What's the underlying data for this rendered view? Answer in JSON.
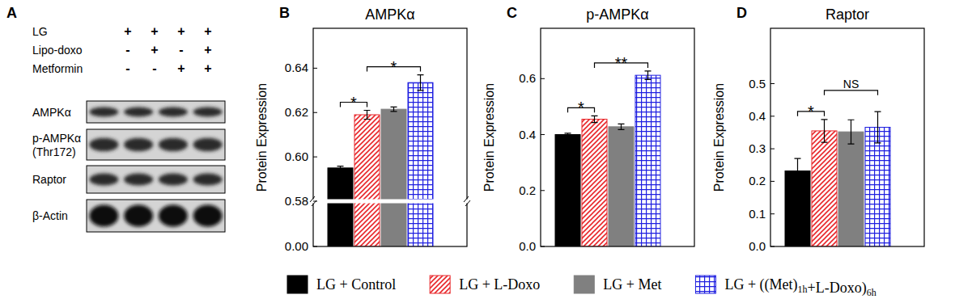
{
  "blot": {
    "label": "A",
    "conditions": [
      {
        "name": "LG",
        "signs": [
          "+",
          "+",
          "+",
          "+"
        ]
      },
      {
        "name": "Lipo-doxo",
        "signs": [
          "-",
          "+",
          "-",
          "+"
        ]
      },
      {
        "name": "Metformin",
        "signs": [
          "-",
          "-",
          "+",
          "+"
        ]
      }
    ],
    "proteins": [
      [
        "AMPKα"
      ],
      [
        "p-AMPKα",
        "(Thr172)"
      ],
      [
        "Raptor"
      ],
      [
        "β-Actin"
      ]
    ]
  },
  "chart_data": [
    {
      "type": "bar",
      "panel": "B",
      "title": "AMPKα",
      "y_label": "Protein Expression",
      "categories": [
        "LG + Control",
        "LG + L-Doxo",
        "LG + Met",
        "LG + ((Met)1h+L-Doxo)6h"
      ],
      "values": [
        0.595,
        0.619,
        0.6215,
        0.6335
      ],
      "errors": [
        0.0008,
        0.002,
        0.001,
        0.0035
      ],
      "colors": [
        "#000000",
        "#e8262a",
        "#808080",
        "#1f1fe0"
      ],
      "ylim": [
        0,
        0.658
      ],
      "y_break": 0.58,
      "yticks": [
        {
          "value": 0,
          "label": "0.00"
        },
        0.58,
        {
          "value": 0.6,
          "label": "0.60"
        },
        0.62,
        0.64
      ],
      "tick_labels": "y",
      "legend": "bottom",
      "annotations": [
        {
          "text": "*",
          "between": [
            0,
            1
          ]
        },
        {
          "text": "*",
          "between": [
            1,
            3
          ]
        }
      ]
    },
    {
      "type": "bar",
      "panel": "C",
      "title": "p-AMPKα",
      "y_label": "Protein Expression",
      "categories": [
        "LG + Control",
        "LG + L-Doxo",
        "LG + Met",
        "LG + ((Met)1h+L-Doxo)6h"
      ],
      "values": [
        0.4,
        0.455,
        0.428,
        0.612
      ],
      "errors": [
        0.005,
        0.012,
        0.01,
        0.015
      ],
      "colors": [
        "#000000",
        "#e8262a",
        "#808080",
        "#1f1fe0"
      ],
      "ylim": [
        0,
        0.78
      ],
      "yticks": [
        {
          "value": 0,
          "label": "0.0"
        },
        0.2,
        0.4,
        0.6
      ],
      "tick_labels": "y",
      "annotations": [
        {
          "text": "*",
          "between": [
            0,
            1
          ]
        },
        {
          "text": "**",
          "between": [
            1,
            3
          ]
        }
      ]
    },
    {
      "type": "bar",
      "panel": "D",
      "title": "Raptor",
      "y_label": "Protein Expression",
      "categories": [
        "LG + Control",
        "LG + L-Doxo",
        "LG + Met",
        "LG + ((Met)1h+L-Doxo)6h"
      ],
      "values": [
        0.232,
        0.355,
        0.352,
        0.366
      ],
      "errors": [
        0.038,
        0.035,
        0.037,
        0.048
      ],
      "colors": [
        "#000000",
        "#e8262a",
        "#808080",
        "#1f1fe0"
      ],
      "ylim": [
        0,
        0.67
      ],
      "yticks": [
        {
          "value": 0,
          "label": "0.0"
        },
        0.1,
        0.2,
        0.3,
        0.4,
        0.5
      ],
      "tick_labels": "y",
      "annotations": [
        {
          "text": "*",
          "between": [
            0,
            1
          ]
        },
        {
          "text": "NS",
          "between": [
            1,
            3
          ]
        }
      ]
    }
  ]
}
